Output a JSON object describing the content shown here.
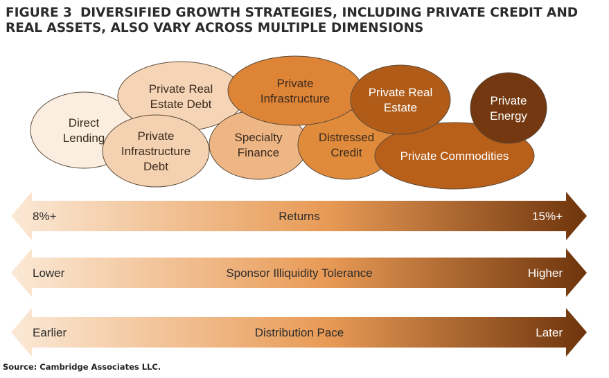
{
  "figure": {
    "number": "FIGURE 3",
    "title_line1": "DIVERSIFIED GROWTH STRATEGIES, INCLUDING PRIVATE CREDIT AND",
    "title_line2": "REAL ASSETS, ALSO VARY ACROSS MULTIPLE DIMENSIONS"
  },
  "strategies": [
    {
      "key": "direct-lending",
      "lines": [
        "Direct",
        "Lending"
      ],
      "fill": "#fbeee0",
      "text": "#3a2a1e"
    },
    {
      "key": "private-real-estate-debt",
      "lines": [
        "Private Real",
        "Estate Debt"
      ],
      "fill": "#f5d5b6",
      "text": "#3a2a1e"
    },
    {
      "key": "private-infrastructure-debt",
      "lines": [
        "Private",
        "Infrastructure",
        "Debt"
      ],
      "fill": "#f4d1b0",
      "text": "#3a2a1e"
    },
    {
      "key": "specialty-finance",
      "lines": [
        "Specialty",
        "Finance"
      ],
      "fill": "#eeb684",
      "text": "#3a2a1e"
    },
    {
      "key": "distressed-credit",
      "lines": [
        "Distressed",
        "Credit"
      ],
      "fill": "#e08b3c",
      "text": "#3a2a1e"
    },
    {
      "key": "private-infrastructure",
      "lines": [
        "Private",
        "Infrastructure"
      ],
      "fill": "#de8436",
      "text": "#3a2a1e"
    },
    {
      "key": "private-commodities",
      "lines": [
        "Private Commodities"
      ],
      "fill": "#b85f1a",
      "text": "#ffffff"
    },
    {
      "key": "private-real-estate",
      "lines": [
        "Private Real",
        "Estate"
      ],
      "fill": "#b05c18",
      "text": "#ffffff"
    },
    {
      "key": "private-energy",
      "lines": [
        "Private",
        "Energy"
      ],
      "fill": "#73380f",
      "text": "#ffffff"
    }
  ],
  "dimensions": [
    {
      "key": "returns",
      "left": "8%+",
      "center": "Returns",
      "right": "15%+"
    },
    {
      "key": "sponsor-illiquidity-tolerance",
      "left": "Lower",
      "center": "Sponsor Illiquidity Tolerance",
      "right": "Higher"
    },
    {
      "key": "distribution-pace",
      "left": "Earlier",
      "center": "Distribution Pace",
      "right": "Later"
    }
  ],
  "colors": {
    "gradient_start": "#fbe9d6",
    "gradient_mid": "#e89a55",
    "gradient_end": "#6e340c",
    "outline": "#5a4a3a",
    "arrow_text_light": "#2b2b2b",
    "arrow_text_dark": "#ffffff"
  },
  "source": "Source: Cambridge Associates LLC."
}
